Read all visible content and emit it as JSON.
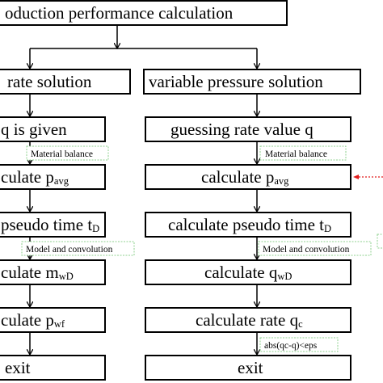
{
  "title": "oduction performance calculation",
  "left_branch": {
    "header": "rate solution",
    "step1": "q is given",
    "label1": "Material balance",
    "step2": {
      "main": "culate p",
      "sub": "avg"
    },
    "step3": {
      "main": "pseudo time t",
      "sub": "D"
    },
    "label2": "Model and convolution",
    "step4": {
      "main": "culate m",
      "sub": "wD"
    },
    "step5": {
      "main": "culate p",
      "sub": "wf"
    },
    "exit": "exit"
  },
  "right_branch": {
    "header": "variable pressure solution",
    "step1": "guessing rate value q",
    "label1": "Material balance",
    "step2": {
      "main": "calculate p",
      "sub": "avg"
    },
    "step3": {
      "main": "calculate pseudo time t",
      "sub": "D"
    },
    "label2": "Model and convolution",
    "step4": {
      "main": "calculate q",
      "sub": "wD"
    },
    "step5": {
      "main": "calculate rate q",
      "sub": "c"
    },
    "label3": "abs(qc-q)<eps",
    "exit": "exit"
  },
  "colors": {
    "box_border": "#000000",
    "label_border": "#8fd18f",
    "feedback_arrow": "#e21b1b"
  }
}
